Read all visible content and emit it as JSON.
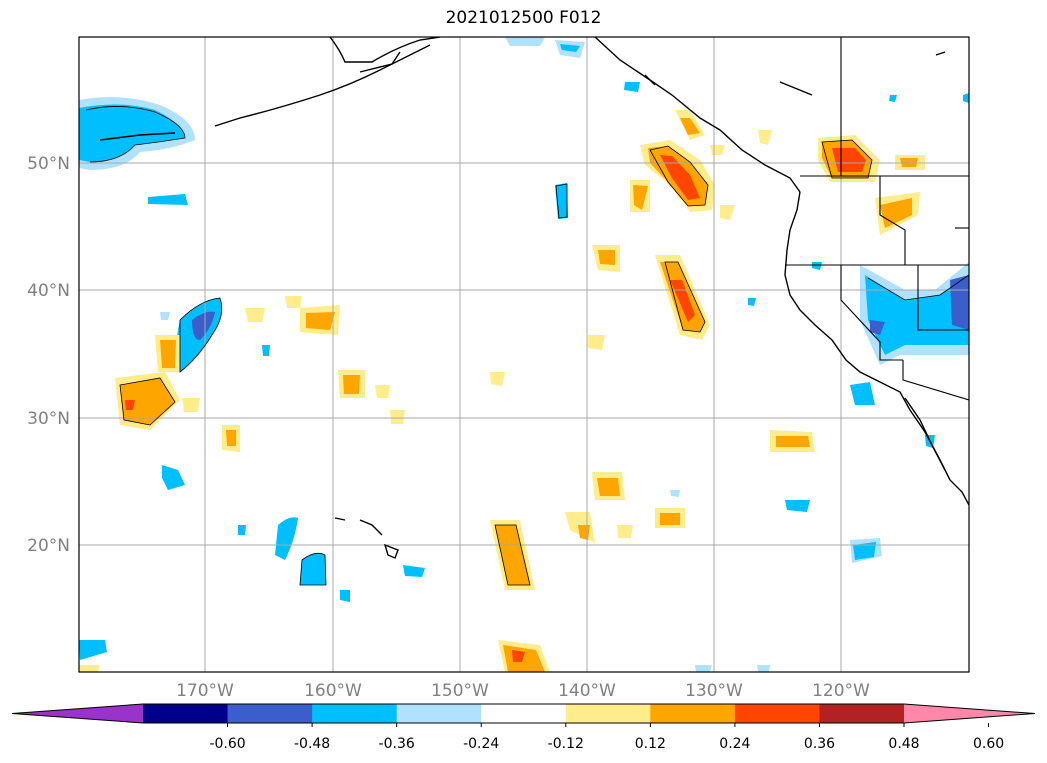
{
  "title": "2021012500 F012",
  "map": {
    "lat_labels": [
      "50°N",
      "40°N",
      "30°N",
      "20°N"
    ],
    "lon_labels": [
      "170°W",
      "160°W",
      "150°W",
      "140°W",
      "130°W",
      "120°W"
    ],
    "grid": true,
    "coastline_color": "#000000",
    "gridline_color": "#a0a0a0"
  },
  "colorbar": {
    "ticks": [
      "-0.60",
      "-0.48",
      "-0.36",
      "-0.24",
      "-0.12",
      "0.12",
      "0.24",
      "0.36",
      "0.48",
      "0.60"
    ],
    "colors": [
      "#9933cc",
      "#00008b",
      "#3a5fcd",
      "#00bfff",
      "#b0e2ff",
      "#ffffff",
      "#ffec8b",
      "#ffa500",
      "#ff4500",
      "#b22222",
      "#ff88aa"
    ],
    "extend": "both"
  }
}
